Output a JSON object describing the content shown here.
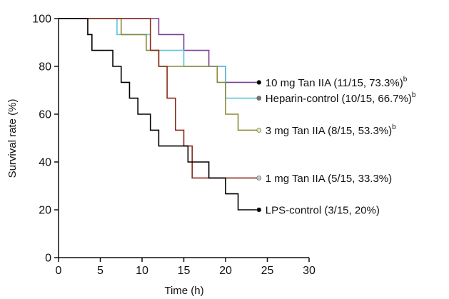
{
  "chart_data": {
    "type": "line",
    "step": true,
    "xlabel": "Time (h)",
    "ylabel": "Survival rate (%)",
    "xlim": [
      0,
      30
    ],
    "ylim": [
      0,
      100
    ],
    "xticks": [
      "0",
      "5",
      "10",
      "15",
      "20",
      "25",
      "30"
    ],
    "yticks": [
      "0",
      "20",
      "40",
      "60",
      "80",
      "100"
    ],
    "xtick_values": [
      0,
      5,
      10,
      15,
      20,
      25,
      30
    ],
    "ytick_values": [
      0,
      20,
      40,
      60,
      80,
      100
    ],
    "grid": false,
    "series": [
      {
        "name": "10 mg Tan IIA (11/15, 73.3%)",
        "superscript": "b",
        "color": "#7b3f98",
        "end_marker_color": "#000000",
        "x": [
          0,
          12,
          15,
          18,
          20,
          24
        ],
        "y": [
          100,
          93.3,
          86.7,
          80,
          73.3,
          73.3
        ]
      },
      {
        "name": "Heparin-control (10/15, 66.7%)",
        "superscript": "b",
        "color": "#5bc8d6",
        "end_marker_color": "#777777",
        "x": [
          0,
          7,
          11,
          15,
          20,
          24
        ],
        "y": [
          100,
          93.3,
          86.7,
          80,
          66.7,
          66.7
        ]
      },
      {
        "name": "3 mg Tan IIA (8/15, 53.3%)",
        "superscript": "b",
        "color": "#8a8a3a",
        "end_marker_color": "#e8e8b0",
        "x": [
          0,
          7.5,
          10.5,
          12,
          19,
          20,
          21.5,
          24
        ],
        "y": [
          100,
          93.3,
          86.7,
          80,
          73.3,
          60,
          53.3,
          53.3
        ]
      },
      {
        "name": "1 mg Tan IIA (5/15, 33.3%)",
        "superscript": "",
        "color": "#8b2a1a",
        "end_marker_color": "#c8c8c8",
        "x": [
          0,
          11,
          12,
          13,
          14,
          15,
          16,
          24
        ],
        "y": [
          100,
          86.7,
          80,
          66.7,
          53.3,
          46.7,
          33.3,
          33.3
        ]
      },
      {
        "name": "LPS-control (3/15, 20%)",
        "superscript": "",
        "color": "#000000",
        "end_marker_color": "#000000",
        "x": [
          0,
          3.5,
          4,
          6.5,
          7.5,
          8.5,
          9.5,
          11,
          12,
          15.5,
          18,
          20,
          21.5,
          24
        ],
        "y": [
          100,
          93.3,
          86.7,
          80,
          73.3,
          66.7,
          60,
          53.3,
          46.7,
          40,
          33.3,
          26.7,
          20,
          20
        ]
      }
    ]
  }
}
